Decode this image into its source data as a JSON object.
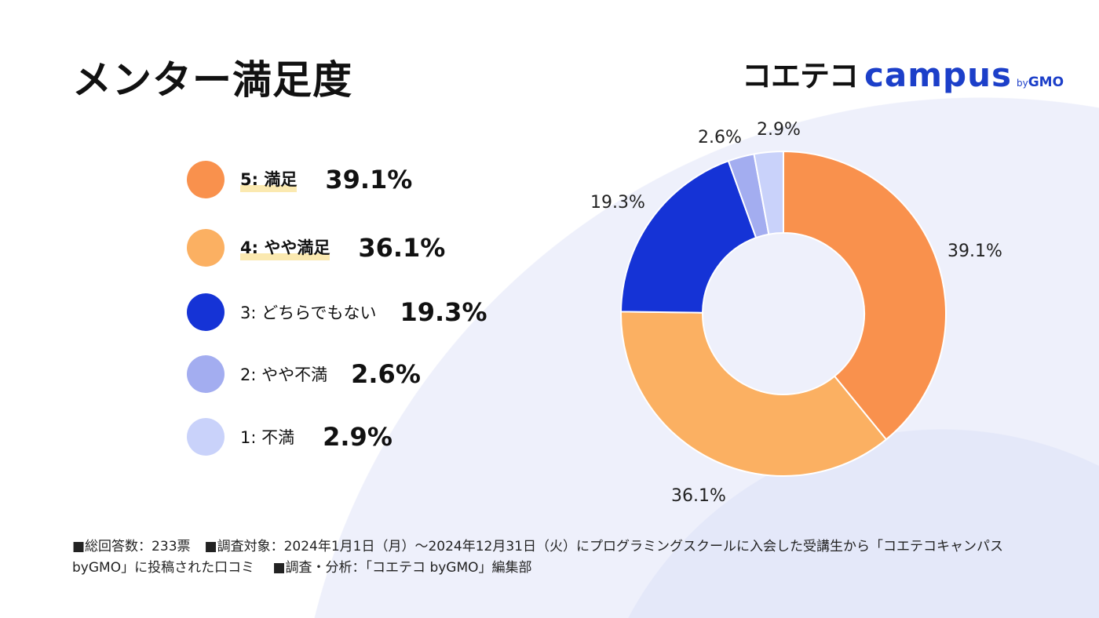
{
  "title": "メンター満足度",
  "logo": {
    "main": "コエテコ",
    "campus": "campus",
    "by": "by",
    "gmo": "GMO"
  },
  "chart_data": {
    "type": "pie",
    "donut": true,
    "title": "メンター満足度",
    "legend_position": "left",
    "categories": [
      "5: 満足",
      "4: やや満足",
      "3: どちらでもない",
      "2: やや不満",
      "1: 不満"
    ],
    "values": [
      39.1,
      36.1,
      19.3,
      2.6,
      2.9
    ],
    "value_labels": [
      "39.1%",
      "36.1%",
      "19.3%",
      "2.6%",
      "2.9%"
    ],
    "colors": [
      "#f9914d",
      "#fbb062",
      "#1533d6",
      "#a3adf0",
      "#c9d2fa"
    ]
  },
  "footer": {
    "total": "■総回答数：233票",
    "target": "■調査対象：2024年1月1日（月）～2024年12月31日（火）にプログラミングスクールに入会した受講生から「コエテコキャンパス byGMO」に投稿された口コミ",
    "analysis": "■調査・分析：「コエテコ byGMO」編集部"
  }
}
